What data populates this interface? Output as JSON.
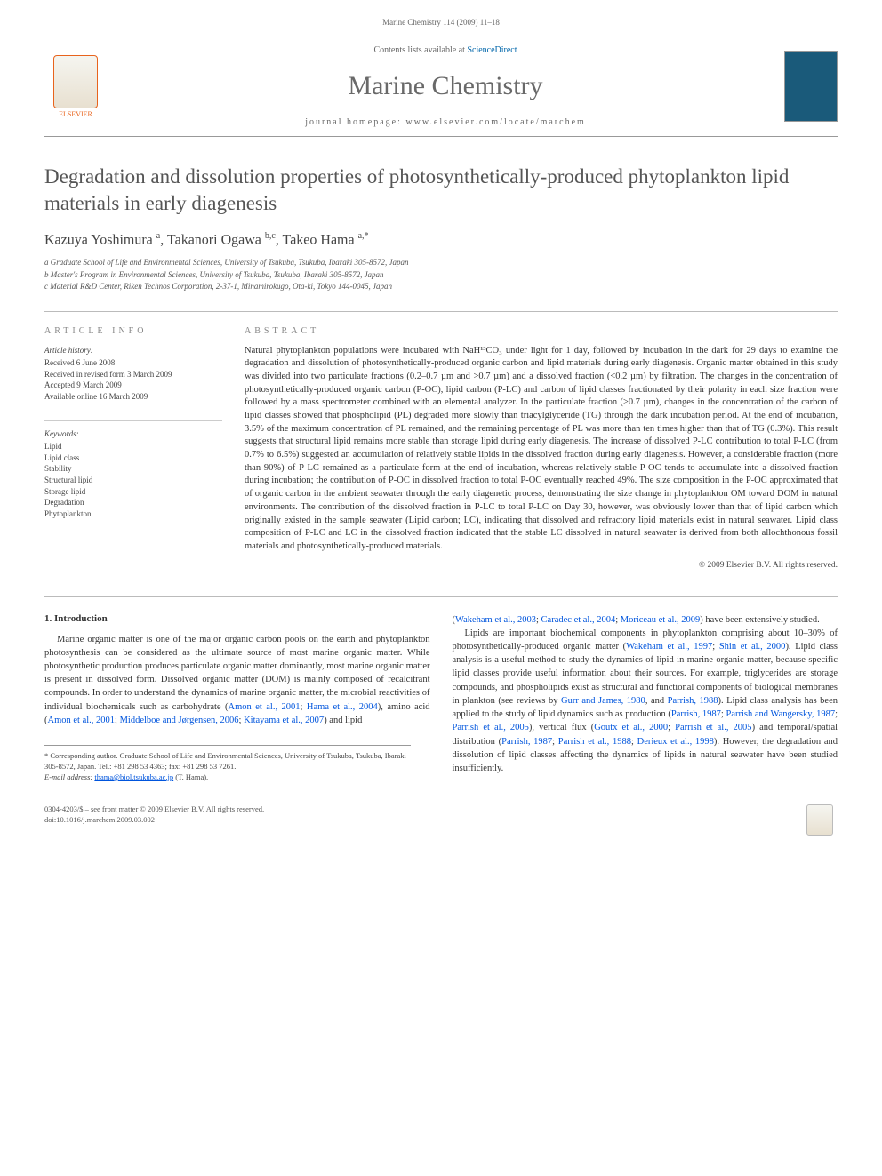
{
  "header": {
    "citation": "Marine Chemistry 114 (2009) 11–18"
  },
  "masthead": {
    "contents_prefix": "Contents lists available at ",
    "contents_link": "ScienceDirect",
    "journal_title": "Marine Chemistry",
    "homepage_label": "journal homepage: ",
    "homepage_url": "www.elsevier.com/locate/marchem",
    "elsevier_label": "ELSEVIER"
  },
  "article": {
    "title": "Degradation and dissolution properties of photosynthetically-produced phytoplankton lipid materials in early diagenesis",
    "authors_html": "Kazuya Yoshimura <sup>a</sup>, Takanori Ogawa <sup>b,c</sup>, Takeo Hama <sup>a,*</sup>",
    "affiliations": [
      "a Graduate School of Life and Environmental Sciences, University of Tsukuba, Tsukuba, Ibaraki 305-8572, Japan",
      "b Master's Program in Environmental Sciences, University of Tsukuba, Tsukuba, Ibaraki 305-8572, Japan",
      "c Material R&D Center, Riken Technos Corporation, 2-37-1, Minamirokugo, Ota-ki, Tokyo 144-0045, Japan"
    ]
  },
  "info": {
    "heading": "ARTICLE INFO",
    "history_heading": "Article history:",
    "history": [
      "Received 6 June 2008",
      "Received in revised form 3 March 2009",
      "Accepted 9 March 2009",
      "Available online 16 March 2009"
    ],
    "keywords_heading": "Keywords:",
    "keywords": [
      "Lipid",
      "Lipid class",
      "Stability",
      "Structural lipid",
      "Storage lipid",
      "Degradation",
      "Phytoplankton"
    ]
  },
  "abstract": {
    "heading": "ABSTRACT",
    "text": "Natural phytoplankton populations were incubated with NaH¹³CO₃ under light for 1 day, followed by incubation in the dark for 29 days to examine the degradation and dissolution of photosynthetically-produced organic carbon and lipid materials during early diagenesis. Organic matter obtained in this study was divided into two particulate fractions (0.2–0.7 µm and >0.7 µm) and a dissolved fraction (<0.2 µm) by filtration. The changes in the concentration of photosynthetically-produced organic carbon (P-OC), lipid carbon (P-LC) and carbon of lipid classes fractionated by their polarity in each size fraction were followed by a mass spectrometer combined with an elemental analyzer. In the particulate fraction (>0.7 µm), changes in the concentration of the carbon of lipid classes showed that phospholipid (PL) degraded more slowly than triacylglyceride (TG) through the dark incubation period. At the end of incubation, 3.5% of the maximum concentration of PL remained, and the remaining percentage of PL was more than ten times higher than that of TG (0.3%). This result suggests that structural lipid remains more stable than storage lipid during early diagenesis. The increase of dissolved P-LC contribution to total P-LC (from 0.7% to 6.5%) suggested an accumulation of relatively stable lipids in the dissolved fraction during early diagenesis. However, a considerable fraction (more than 90%) of P-LC remained as a particulate form at the end of incubation, whereas relatively stable P-OC tends to accumulate into a dissolved fraction during incubation; the contribution of P-OC in dissolved fraction to total P-OC eventually reached 49%. The size composition in the P-OC approximated that of organic carbon in the ambient seawater through the early diagenetic process, demonstrating the size change in phytoplankton OM toward DOM in natural environments. The contribution of the dissolved fraction in P-LC to total P-LC on Day 30, however, was obviously lower than that of lipid carbon which originally existed in the sample seawater (Lipid carbon; LC), indicating that dissolved and refractory lipid materials exist in natural seawater. Lipid class composition of P-LC and LC in the dissolved fraction indicated that the stable LC dissolved in natural seawater is derived from both allochthonous fossil materials and photosynthetically-produced materials.",
    "copyright": "© 2009 Elsevier B.V. All rights reserved."
  },
  "body": {
    "section_heading": "1. Introduction",
    "left_para": "Marine organic matter is one of the major organic carbon pools on the earth and phytoplankton photosynthesis can be considered as the ultimate source of most marine organic matter. While photosynthetic production produces particulate organic matter dominantly, most marine organic matter is present in dissolved form. Dissolved organic matter (DOM) is mainly composed of recalcitrant compounds. In order to understand the dynamics of marine organic matter, the microbial reactivities of individual biochemicals such as carbohydrate (Amon et al., 2001; Hama et al., 2004), amino acid (Amon et al., 2001; Middelboe and Jørgensen, 2006; Kitayama et al., 2007) and lipid",
    "right_para_1": "(Wakeham et al., 2003; Caradec et al., 2004; Moriceau et al., 2009) have been extensively studied.",
    "right_para_2": "Lipids are important biochemical components in phytoplankton comprising about 10–30% of photosynthetically-produced organic matter (Wakeham et al., 1997; Shin et al., 2000). Lipid class analysis is a useful method to study the dynamics of lipid in marine organic matter, because specific lipid classes provide useful information about their sources. For example, triglycerides are storage compounds, and phospholipids exist as structural and functional components of biological membranes in plankton (see reviews by Gurr and James, 1980, and Parrish, 1988). Lipid class analysis has been applied to the study of lipid dynamics such as production (Parrish, 1987; Parrish and Wangersky, 1987; Parrish et al., 2005), vertical flux (Goutx et al., 2000; Parrish et al., 2005) and temporal/spatial distribution (Parrish, 1987; Parrish et al., 1988; Derieux et al., 1998). However, the degradation and dissolution of lipid classes affecting the dynamics of lipids in natural seawater have been studied insufficiently."
  },
  "footnotes": {
    "corresponding": "* Corresponding author. Graduate School of Life and Environmental Sciences, University of Tsukuba, Tsukuba, Ibaraki 305-8572, Japan. Tel.: +81 298 53 4363; fax: +81 298 53 7261.",
    "email_label": "E-mail address:",
    "email": "thama@biol.tsukuba.ac.jp",
    "email_who": "(T. Hama)."
  },
  "footer": {
    "issn": "0304-4203/$ – see front matter © 2009 Elsevier B.V. All rights reserved.",
    "doi": "doi:10.1016/j.marchem.2009.03.002"
  },
  "colors": {
    "link": "#0055dd",
    "orange": "#e8631c",
    "grey": "#696969"
  }
}
